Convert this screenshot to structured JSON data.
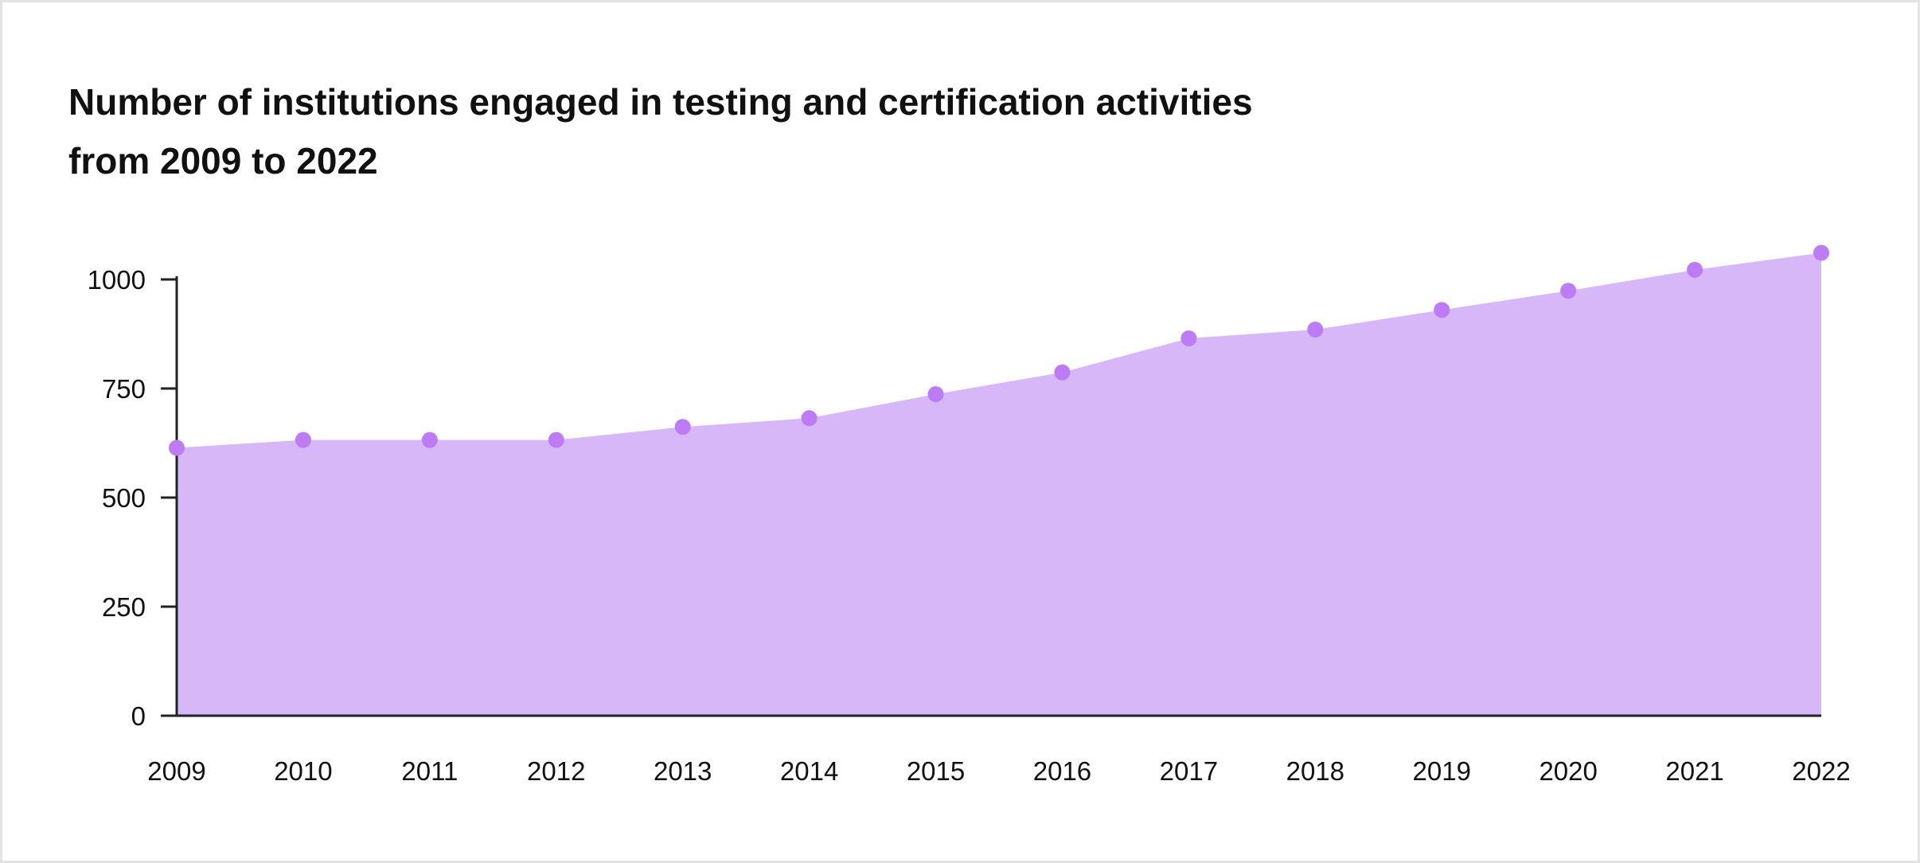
{
  "chart_data": {
    "type": "area",
    "title": [
      "Number of institutions engaged in testing and certification activities",
      "from 2009 to 2022"
    ],
    "xlabel": "",
    "ylabel": "",
    "x": [
      "2009",
      "2010",
      "2011",
      "2012",
      "2013",
      "2014",
      "2015",
      "2016",
      "2017",
      "2018",
      "2019",
      "2020",
      "2021",
      "2022"
    ],
    "series": [
      {
        "values": [
          614,
          632,
          632,
          632,
          662,
          682,
          737,
          787,
          865,
          885,
          930,
          974,
          1022,
          1061
        ]
      }
    ],
    "ylim": [
      0,
      1000
    ],
    "yticks": [
      0,
      250,
      500,
      750,
      1000
    ],
    "grid": false,
    "legend": "none",
    "colors": {
      "area": "#d8b7f9",
      "marker": "#bd7bf6",
      "axis": "#222222"
    }
  }
}
